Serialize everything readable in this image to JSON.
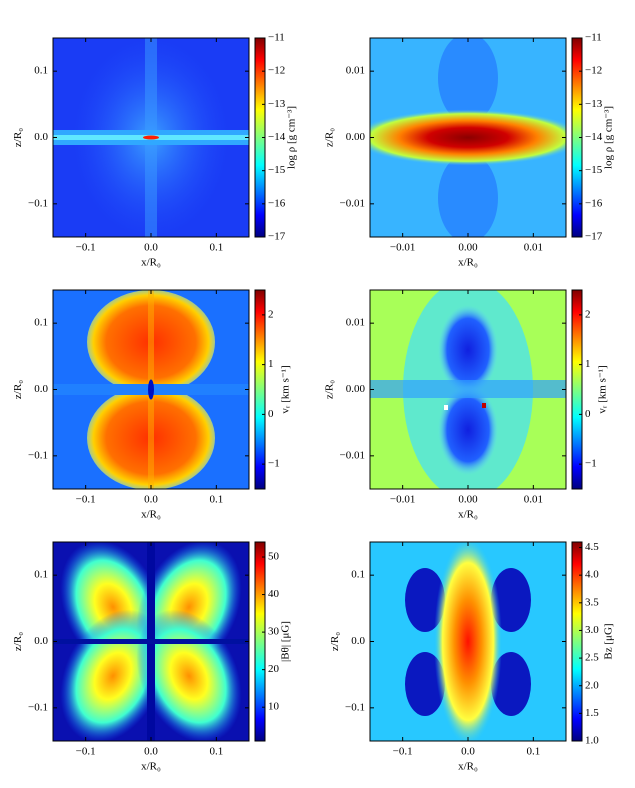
{
  "chart_data": [
    {
      "type": "heatmap",
      "colormap": "jet",
      "xlabel": "x/R₀",
      "ylabel": "z/R₀",
      "xlim": [
        -0.15,
        0.15
      ],
      "ylim": [
        -0.15,
        0.15
      ],
      "xticks": [
        {
          "value": -0.1,
          "label": "−0.1"
        },
        {
          "value": 0,
          "label": "0.0"
        },
        0.1
      ],
      "yticks": [
        {
          "value": -0.1,
          "label": "−0.1"
        },
        {
          "value": 0,
          "label": "0.0"
        },
        0.1
      ],
      "colorbar": {
        "label": "log ρ [g cm⁻³]",
        "clim": [
          -17,
          -11
        ],
        "ticks": [
          {
            "value": -17,
            "label": "−17"
          },
          {
            "value": -16,
            "label": "−16"
          },
          {
            "value": -15,
            "label": "−15"
          },
          {
            "value": -14,
            "label": "−14"
          },
          {
            "value": -13,
            "label": "−13"
          },
          {
            "value": -12,
            "label": "−12"
          },
          {
            "value": -11,
            "label": "−11"
          }
        ]
      }
    },
    {
      "type": "heatmap",
      "colormap": "jet",
      "xlabel": "x/R₀",
      "ylabel": "z/R₀",
      "xlim": [
        -0.015,
        0.015
      ],
      "ylim": [
        -0.015,
        0.015
      ],
      "xticks": [
        {
          "value": -0.01,
          "label": "−0.01"
        },
        {
          "value": 0,
          "label": "0.00"
        },
        0.01
      ],
      "yticks": [
        {
          "value": -0.01,
          "label": "−0.01"
        },
        {
          "value": 0,
          "label": "0.00"
        },
        0.01
      ],
      "colorbar": {
        "label": "log ρ [g cm⁻³]",
        "clim": [
          -17,
          -11
        ],
        "ticks": [
          {
            "value": -17,
            "label": "−17"
          },
          {
            "value": -16,
            "label": "−16"
          },
          {
            "value": -15,
            "label": "−15"
          },
          {
            "value": -14,
            "label": "−14"
          },
          {
            "value": -13,
            "label": "−13"
          },
          {
            "value": -12,
            "label": "−12"
          },
          {
            "value": -11,
            "label": "−11"
          }
        ]
      }
    },
    {
      "type": "heatmap",
      "colormap": "jet",
      "xlabel": "x/R₀",
      "ylabel": "z/R₀",
      "xlim": [
        -0.15,
        0.15
      ],
      "ylim": [
        -0.15,
        0.15
      ],
      "xticks": [
        {
          "value": -0.1,
          "label": "−0.1"
        },
        {
          "value": 0,
          "label": "0.0"
        },
        0.1
      ],
      "yticks": [
        {
          "value": -0.1,
          "label": "−0.1"
        },
        {
          "value": 0,
          "label": "0.0"
        },
        0.1
      ],
      "colorbar": {
        "label": "vᵣ [km s⁻¹]",
        "clim": [
          -1.5,
          2.5
        ],
        "ticks": [
          {
            "value": -1,
            "label": "−1"
          },
          0,
          1,
          2
        ]
      }
    },
    {
      "type": "heatmap",
      "colormap": "jet",
      "xlabel": "x/R₀",
      "ylabel": "z/R₀",
      "xlim": [
        -0.015,
        0.015
      ],
      "ylim": [
        -0.015,
        0.015
      ],
      "xticks": [
        {
          "value": -0.01,
          "label": "−0.01"
        },
        {
          "value": 0,
          "label": "0.00"
        },
        0.01
      ],
      "yticks": [
        {
          "value": -0.01,
          "label": "−0.01"
        },
        {
          "value": 0,
          "label": "0.00"
        },
        0.01
      ],
      "colorbar": {
        "label": "vᵣ [km s⁻¹]",
        "clim": [
          -1.5,
          2.5
        ],
        "ticks": [
          {
            "value": -1,
            "label": "−1"
          },
          0,
          1,
          2
        ]
      }
    },
    {
      "type": "heatmap",
      "colormap": "jet",
      "xlabel": "x/R₀",
      "ylabel": "z/R₀",
      "xlim": [
        -0.15,
        0.15
      ],
      "ylim": [
        -0.15,
        0.15
      ],
      "xticks": [
        {
          "value": -0.1,
          "label": "−0.1"
        },
        {
          "value": 0,
          "label": "0.0"
        },
        0.1
      ],
      "yticks": [
        {
          "value": -0.1,
          "label": "−0.1"
        },
        {
          "value": 0,
          "label": "0.0"
        },
        0.1
      ],
      "colorbar": {
        "label": "|Bθ| [μG]",
        "clim": [
          1,
          54
        ],
        "ticks": [
          10,
          20,
          30,
          40,
          50
        ]
      }
    },
    {
      "type": "heatmap",
      "colormap": "jet",
      "xlabel": "x/R₀",
      "ylabel": "z/R₀",
      "xlim": [
        -0.15,
        0.15
      ],
      "ylim": [
        -0.15,
        0.15
      ],
      "xticks": [
        {
          "value": -0.1,
          "label": "−0.1"
        },
        {
          "value": 0,
          "label": "0.0"
        },
        0.1
      ],
      "yticks": [
        {
          "value": -0.1,
          "label": "−0.1"
        },
        {
          "value": 0,
          "label": "0.0"
        },
        0.1
      ],
      "colorbar": {
        "label": "Bz [μG]",
        "clim": [
          1,
          4.6
        ],
        "ticks": [
          {
            "value": 1,
            "label": "1.0"
          },
          1.5,
          {
            "value": 2,
            "label": "2.0"
          },
          2.5,
          {
            "value": 3,
            "label": "3.0"
          },
          3.5,
          {
            "value": 4,
            "label": "4.0"
          },
          4.5
        ]
      }
    }
  ]
}
